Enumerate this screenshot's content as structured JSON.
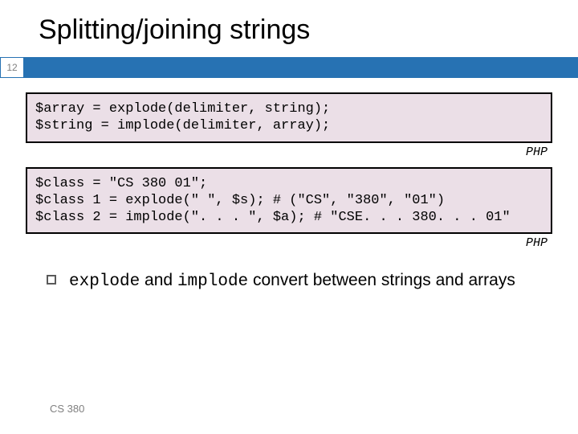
{
  "title": "Splitting/joining strings",
  "page_number": "12",
  "bar_color": "#2772b3",
  "codebox1": {
    "background": "#ebdfe7",
    "border": "#000000",
    "lines": [
      "$array = explode(delimiter, string);",
      "$string = implode(delimiter, array);"
    ],
    "lang_label": "PHP"
  },
  "codebox2": {
    "background": "#ebdfe7",
    "border": "#000000",
    "lines": [
      "$class = \"CS 380 01\";",
      "$class 1 = explode(\" \", $s); # (\"CS\", \"380\", \"01\")",
      "$class 2 = implode(\". . . \", $a); # \"CSE. . . 380. . . 01\""
    ],
    "lang_label": "PHP"
  },
  "bullet": {
    "mono1": "explode",
    "mid1": " and ",
    "mono2": "implode",
    "rest": "  convert between strings and arrays"
  },
  "footer": "CS 380"
}
